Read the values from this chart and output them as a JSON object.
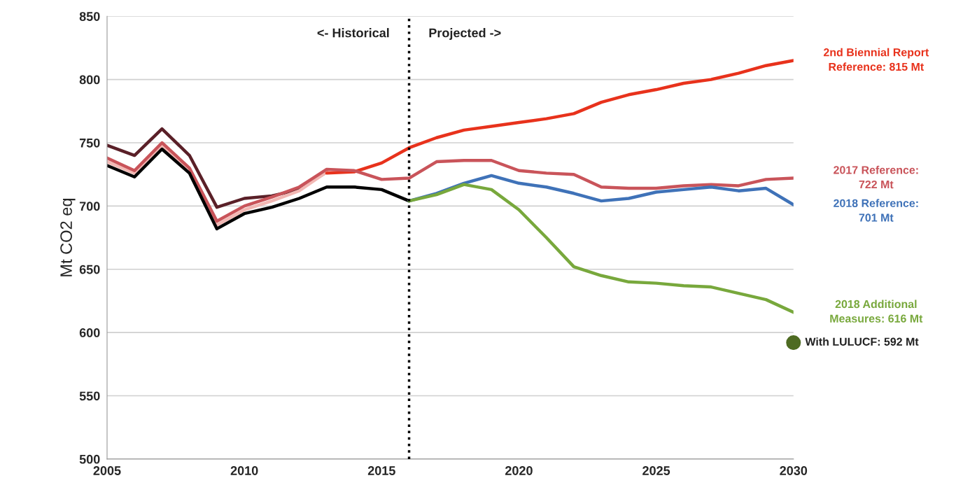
{
  "chart_data": {
    "type": "line",
    "ylabel": "Mt CO2 eq",
    "xlim": [
      2005,
      2030
    ],
    "xticks": [
      2005,
      2010,
      2015,
      2020,
      2025,
      2030
    ],
    "ylim": [
      500,
      850
    ],
    "yticks": [
      500,
      550,
      600,
      650,
      700,
      750,
      800,
      850
    ],
    "grid": "y",
    "legend": false,
    "marker": "none",
    "line_style": "solid",
    "series": [
      {
        "color": "#5a2028",
        "x": [
          2005,
          2006,
          2007,
          2008,
          2009,
          2010,
          2011,
          2012,
          2013
        ],
        "values": [
          748,
          740,
          761,
          740,
          699,
          706,
          708,
          713,
          727
        ]
      },
      {
        "color": "#f2b8b4",
        "x": [
          2005,
          2006,
          2007,
          2008,
          2009,
          2010,
          2011,
          2012,
          2013
        ],
        "values": [
          735,
          726,
          748,
          728,
          685,
          697,
          704,
          712,
          727
        ]
      },
      {
        "name": "2nd Biennial Report Reference: 815 Mt",
        "color": "#e8321c",
        "x": [
          2013,
          2014,
          2015,
          2016,
          2017,
          2018,
          2019,
          2020,
          2021,
          2022,
          2023,
          2024,
          2025,
          2026,
          2027,
          2028,
          2029,
          2030
        ],
        "values": [
          726,
          727,
          734,
          746,
          754,
          760,
          763,
          766,
          769,
          773,
          782,
          788,
          792,
          797,
          800,
          805,
          811,
          815
        ]
      },
      {
        "name": "2017 Reference: 722 Mt",
        "color": "#c9545a",
        "x": [
          2005,
          2006,
          2007,
          2008,
          2009,
          2010,
          2011,
          2012,
          2013,
          2014,
          2015,
          2016,
          2017,
          2018,
          2019,
          2020,
          2021,
          2022,
          2023,
          2024,
          2025,
          2026,
          2027,
          2028,
          2029,
          2030
        ],
        "values": [
          738,
          728,
          750,
          730,
          688,
          700,
          707,
          715,
          729,
          728,
          721,
          722,
          735,
          736,
          736,
          728,
          726,
          725,
          715,
          714,
          714,
          716,
          717,
          716,
          721,
          722
        ]
      },
      {
        "color": "#000000",
        "x": [
          2005,
          2006,
          2007,
          2008,
          2009,
          2010,
          2011,
          2012,
          2013,
          2014,
          2015,
          2016
        ],
        "values": [
          732,
          723,
          745,
          726,
          682,
          694,
          699,
          706,
          715,
          715,
          713,
          704
        ]
      },
      {
        "name": "2018 Reference: 701 Mt",
        "color": "#3f72b8",
        "x": [
          2016,
          2017,
          2018,
          2019,
          2020,
          2021,
          2022,
          2023,
          2024,
          2025,
          2026,
          2027,
          2028,
          2029,
          2030
        ],
        "values": [
          704,
          710,
          718,
          724,
          718,
          715,
          710,
          704,
          706,
          711,
          713,
          715,
          712,
          714,
          701
        ]
      },
      {
        "name": "2018 Additional Measures: 616 Mt",
        "color": "#78a83c",
        "x": [
          2016,
          2017,
          2018,
          2019,
          2020,
          2021,
          2022,
          2023,
          2024,
          2025,
          2026,
          2027,
          2028,
          2029,
          2030
        ],
        "values": [
          704,
          709,
          717,
          713,
          697,
          675,
          652,
          645,
          640,
          639,
          637,
          636,
          631,
          626,
          616
        ]
      },
      {
        "name": "With LULUCF: 592 Mt",
        "type": "scatter",
        "marker": "circle",
        "color": "#4e6b22",
        "x": [
          2030
        ],
        "values": [
          592
        ]
      }
    ],
    "ref_lines": [
      {
        "axis": "x",
        "value": 2016,
        "color": "#000000",
        "line_style": "dotted"
      }
    ],
    "annotations": [
      "<- Historical",
      "Projected ->"
    ]
  }
}
